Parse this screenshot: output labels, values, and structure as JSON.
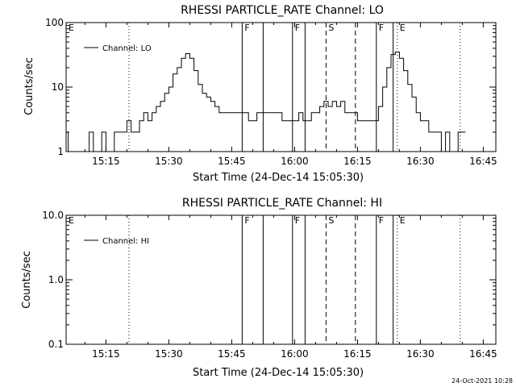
{
  "figure": {
    "timestamp": "24-Oct-2021 10:28",
    "time_range": [
      "15:05:30",
      "16:48:00"
    ],
    "x_ticks": [
      {
        "t": "15:15:00",
        "label": "15:15"
      },
      {
        "t": "15:30:00",
        "label": "15:30"
      },
      {
        "t": "15:45:00",
        "label": "15:45"
      },
      {
        "t": "16:00:00",
        "label": "16:00"
      },
      {
        "t": "16:15:00",
        "label": "16:15"
      },
      {
        "t": "16:30:00",
        "label": "16:30"
      },
      {
        "t": "16:45:00",
        "label": "16:45"
      }
    ],
    "event_markers": [
      {
        "t": "15:05:30",
        "label": "E",
        "style": "dotted"
      },
      {
        "t": "15:20:30",
        "label": "",
        "style": "dotted"
      },
      {
        "t": "15:47:30",
        "label": "F",
        "style": "solid"
      },
      {
        "t": "15:52:30",
        "label": "",
        "style": "solid"
      },
      {
        "t": "15:59:30",
        "label": "F",
        "style": "solid"
      },
      {
        "t": "16:02:30",
        "label": "",
        "style": "solid"
      },
      {
        "t": "16:07:30",
        "label": "S",
        "style": "dashed"
      },
      {
        "t": "16:14:30",
        "label": "",
        "style": "dashed"
      },
      {
        "t": "16:19:30",
        "label": "F",
        "style": "solid"
      },
      {
        "t": "16:23:30",
        "label": "",
        "style": "solid"
      },
      {
        "t": "16:24:30",
        "label": "E",
        "style": "dotted"
      },
      {
        "t": "16:39:30",
        "label": "",
        "style": "dotted"
      }
    ]
  },
  "chart_data": [
    {
      "type": "line",
      "title": "RHESSI PARTICLE_RATE Channel: LO",
      "xlabel": "Start Time (24-Dec-14 15:05:30)",
      "ylabel": "Counts/sec",
      "y_scale": "log",
      "ylim": [
        1,
        100
      ],
      "y_ticks": [
        {
          "value": 1,
          "label": "1"
        },
        {
          "value": 10,
          "label": "10"
        },
        {
          "value": 100,
          "label": "100"
        }
      ],
      "legend": "top-left",
      "series": [
        {
          "name": "Channel: LO",
          "x": [
            "15:05:30",
            "15:06:00",
            "15:07:00",
            "15:08:00",
            "15:09:00",
            "15:10:00",
            "15:11:00",
            "15:12:00",
            "15:13:00",
            "15:14:00",
            "15:15:00",
            "15:16:00",
            "15:17:00",
            "15:18:00",
            "15:19:00",
            "15:20:00",
            "15:21:00",
            "15:22:00",
            "15:23:00",
            "15:24:00",
            "15:25:00",
            "15:26:00",
            "15:27:00",
            "15:28:00",
            "15:29:00",
            "15:30:00",
            "15:31:00",
            "15:32:00",
            "15:33:00",
            "15:34:00",
            "15:35:00",
            "15:36:00",
            "15:37:00",
            "15:38:00",
            "15:39:00",
            "15:40:00",
            "15:41:00",
            "15:42:00",
            "15:43:00",
            "15:44:00",
            "15:45:00",
            "15:46:00",
            "15:47:00",
            "15:48:00",
            "15:49:00",
            "15:50:00",
            "15:51:00",
            "15:52:00",
            "15:53:00",
            "15:54:00",
            "15:55:00",
            "15:56:00",
            "15:57:00",
            "15:58:00",
            "15:59:00",
            "16:00:00",
            "16:01:00",
            "16:02:00",
            "16:03:00",
            "16:04:00",
            "16:05:00",
            "16:06:00",
            "16:07:00",
            "16:08:00",
            "16:09:00",
            "16:10:00",
            "16:11:00",
            "16:12:00",
            "16:13:00",
            "16:14:00",
            "16:15:00",
            "16:16:00",
            "16:17:00",
            "16:18:00",
            "16:19:00",
            "16:20:00",
            "16:21:00",
            "16:22:00",
            "16:23:00",
            "16:24:00",
            "16:25:00",
            "16:26:00",
            "16:27:00",
            "16:28:00",
            "16:29:00",
            "16:30:00",
            "16:31:00",
            "16:32:00",
            "16:33:00",
            "16:34:00",
            "16:35:00",
            "16:36:00",
            "16:37:00",
            "16:38:00",
            "16:39:00",
            "16:40:00"
          ],
          "values": [
            2,
            1,
            1,
            1,
            1,
            1,
            2,
            1,
            1,
            2,
            1,
            1,
            2,
            2,
            2,
            3,
            2,
            2,
            3,
            4,
            3,
            4,
            5,
            6,
            8,
            10,
            16,
            20,
            28,
            33,
            28,
            18,
            11,
            8,
            7,
            6,
            5,
            4,
            4,
            4,
            4,
            4,
            4,
            4,
            3,
            3,
            4,
            4,
            4,
            4,
            4,
            4,
            3,
            3,
            3,
            3,
            4,
            3,
            3,
            4,
            4,
            5,
            6,
            5,
            6,
            5,
            6,
            4,
            4,
            4,
            3,
            3,
            3,
            3,
            3,
            5,
            10,
            20,
            32,
            35,
            28,
            18,
            11,
            7,
            4,
            3,
            3,
            2,
            2,
            2,
            1,
            2,
            1,
            1,
            2,
            2
          ]
        }
      ]
    },
    {
      "type": "line",
      "title": "RHESSI PARTICLE_RATE Channel: HI",
      "xlabel": "Start Time (24-Dec-14 15:05:30)",
      "ylabel": "Counts/sec",
      "y_scale": "log",
      "ylim": [
        0.1,
        10
      ],
      "y_ticks": [
        {
          "value": 0.1,
          "label": "0.1"
        },
        {
          "value": 1,
          "label": "1.0"
        },
        {
          "value": 10,
          "label": "10.0"
        }
      ],
      "legend": "top-left",
      "series": [
        {
          "name": "Channel: HI",
          "x": [],
          "values": []
        }
      ]
    }
  ]
}
